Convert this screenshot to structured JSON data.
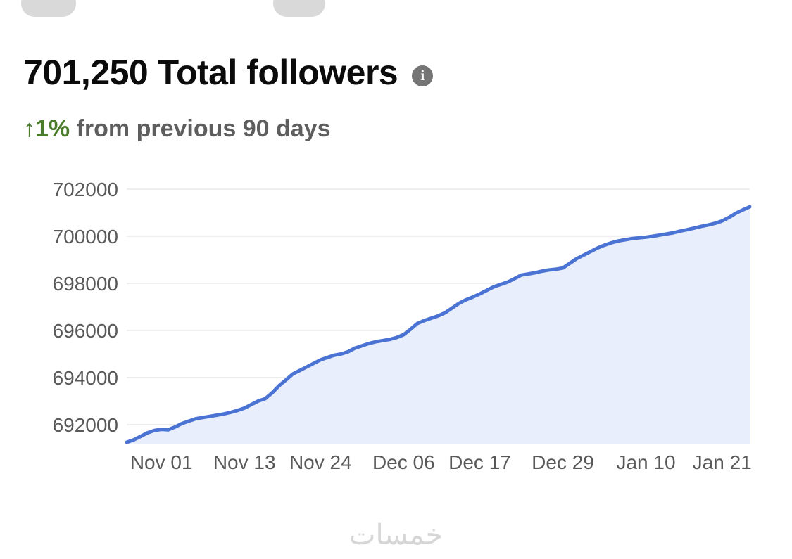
{
  "header": {
    "title": "701,250 Total followers",
    "info_icon_glyph": "i"
  },
  "subtitle": {
    "change": "↑1%",
    "text": " from previous 90 days"
  },
  "watermark": "خمسات",
  "colors": {
    "positive": "#4a7c2a",
    "line": "#4a73d3",
    "fill": "#e8eefb",
    "grid": "#e9e9e9",
    "axis_text": "#595959"
  },
  "chart_data": {
    "type": "area",
    "title": "Total followers over previous 90 days",
    "xlabel": "",
    "ylabel": "",
    "grid": true,
    "legend_position": "none",
    "xlim": [
      0,
      90
    ],
    "ylim": [
      691160,
      702210
    ],
    "line_color": "#4a73d3",
    "fill_color": "#e8eefb",
    "x_ticks": [
      {
        "day": 5,
        "label": "Nov 01"
      },
      {
        "day": 17,
        "label": "Nov 13"
      },
      {
        "day": 28,
        "label": "Nov 24"
      },
      {
        "day": 40,
        "label": "Dec 06"
      },
      {
        "day": 51,
        "label": "Dec 17"
      },
      {
        "day": 63,
        "label": "Dec 29"
      },
      {
        "day": 75,
        "label": "Jan 10"
      },
      {
        "day": 86,
        "label": "Jan 21"
      }
    ],
    "y_ticks": [
      {
        "value": 692000,
        "label": "692000"
      },
      {
        "value": 694000,
        "label": "694000"
      },
      {
        "value": 696000,
        "label": "696000"
      },
      {
        "value": 698000,
        "label": "698000"
      },
      {
        "value": 700000,
        "label": "700000"
      },
      {
        "value": 702000,
        "label": "702000"
      }
    ],
    "series": [
      {
        "name": "Total followers",
        "points": [
          [
            0,
            691250
          ],
          [
            1,
            691350
          ],
          [
            2,
            691500
          ],
          [
            3,
            691650
          ],
          [
            4,
            691750
          ],
          [
            5,
            691800
          ],
          [
            6,
            691780
          ],
          [
            7,
            691900
          ],
          [
            8,
            692050
          ],
          [
            9,
            692150
          ],
          [
            10,
            692250
          ],
          [
            11,
            692300
          ],
          [
            12,
            692350
          ],
          [
            13,
            692400
          ],
          [
            14,
            692450
          ],
          [
            15,
            692520
          ],
          [
            16,
            692600
          ],
          [
            17,
            692700
          ],
          [
            18,
            692850
          ],
          [
            19,
            693000
          ],
          [
            20,
            693100
          ],
          [
            21,
            693350
          ],
          [
            22,
            693650
          ],
          [
            23,
            693900
          ],
          [
            24,
            694150
          ],
          [
            25,
            694300
          ],
          [
            26,
            694450
          ],
          [
            27,
            694600
          ],
          [
            28,
            694750
          ],
          [
            29,
            694850
          ],
          [
            30,
            694950
          ],
          [
            31,
            695000
          ],
          [
            32,
            695100
          ],
          [
            33,
            695250
          ],
          [
            34,
            695350
          ],
          [
            35,
            695450
          ],
          [
            36,
            695520
          ],
          [
            37,
            695570
          ],
          [
            38,
            695620
          ],
          [
            39,
            695700
          ],
          [
            40,
            695820
          ],
          [
            41,
            696050
          ],
          [
            42,
            696300
          ],
          [
            43,
            696420
          ],
          [
            44,
            696520
          ],
          [
            45,
            696620
          ],
          [
            46,
            696750
          ],
          [
            47,
            696950
          ],
          [
            48,
            697150
          ],
          [
            49,
            697300
          ],
          [
            50,
            697420
          ],
          [
            51,
            697550
          ],
          [
            52,
            697700
          ],
          [
            53,
            697850
          ],
          [
            54,
            697950
          ],
          [
            55,
            698050
          ],
          [
            56,
            698200
          ],
          [
            57,
            698350
          ],
          [
            58,
            698400
          ],
          [
            59,
            698450
          ],
          [
            60,
            698520
          ],
          [
            61,
            698570
          ],
          [
            62,
            698600
          ],
          [
            63,
            698650
          ],
          [
            64,
            698850
          ],
          [
            65,
            699050
          ],
          [
            66,
            699200
          ],
          [
            67,
            699350
          ],
          [
            68,
            699500
          ],
          [
            69,
            699620
          ],
          [
            70,
            699720
          ],
          [
            71,
            699800
          ],
          [
            72,
            699850
          ],
          [
            73,
            699900
          ],
          [
            74,
            699930
          ],
          [
            75,
            699960
          ],
          [
            76,
            700000
          ],
          [
            77,
            700050
          ],
          [
            78,
            700100
          ],
          [
            79,
            700150
          ],
          [
            80,
            700220
          ],
          [
            81,
            700280
          ],
          [
            82,
            700350
          ],
          [
            83,
            700420
          ],
          [
            84,
            700480
          ],
          [
            85,
            700550
          ],
          [
            86,
            700650
          ],
          [
            87,
            700800
          ],
          [
            88,
            700980
          ],
          [
            89,
            701120
          ],
          [
            90,
            701250
          ]
        ]
      }
    ]
  }
}
